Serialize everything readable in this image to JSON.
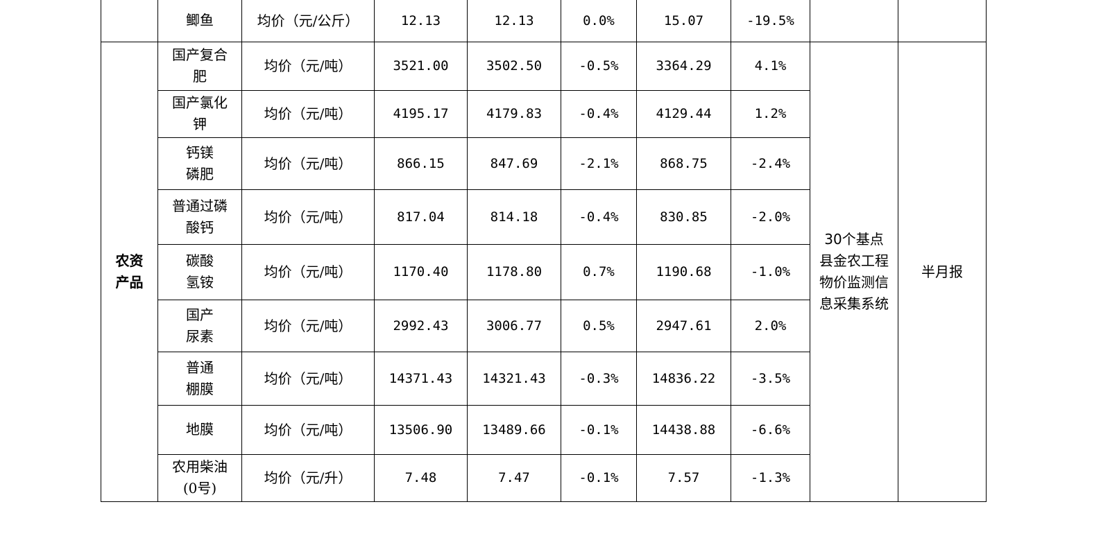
{
  "table": {
    "first_row": {
      "name": "鲫鱼",
      "unit": "均价（元/公斤）",
      "v1": "12.13",
      "v2": "12.13",
      "change1": "0.0%",
      "v3": "15.07",
      "change2": "-19.5%"
    },
    "category": "农资产品",
    "source": "30个基点县金农工程物价监测信息采集系统",
    "frequency": "半月报",
    "rows": [
      {
        "name": "国产复合肥",
        "unit": "均价（元/吨）",
        "v1": "3521.00",
        "v2": "3502.50",
        "change1": "-0.5%",
        "v3": "3364.29",
        "change2": "4.1%"
      },
      {
        "name": "国产氯化钾",
        "unit": "均价（元/吨）",
        "v1": "4195.17",
        "v2": "4179.83",
        "change1": "-0.4%",
        "v3": "4129.44",
        "change2": "1.2%"
      },
      {
        "name": "钙镁磷肥",
        "unit": "均价（元/吨）",
        "v1": "866.15",
        "v2": "847.69",
        "change1": "-2.1%",
        "v3": "868.75",
        "change2": "-2.4%"
      },
      {
        "name": "普通过磷酸钙",
        "unit": "均价（元/吨）",
        "v1": "817.04",
        "v2": "814.18",
        "change1": "-0.4%",
        "v3": "830.85",
        "change2": "-2.0%"
      },
      {
        "name": "碳酸氢铵",
        "unit": "均价（元/吨）",
        "v1": "1170.40",
        "v2": "1178.80",
        "change1": "0.7%",
        "v3": "1190.68",
        "change2": "-1.0%"
      },
      {
        "name": "国产尿素",
        "unit": "均价（元/吨）",
        "v1": "2992.43",
        "v2": "3006.77",
        "change1": "0.5%",
        "v3": "2947.61",
        "change2": "2.0%"
      },
      {
        "name": "普通棚膜",
        "unit": "均价（元/吨）",
        "v1": "14371.43",
        "v2": "14321.43",
        "change1": "-0.3%",
        "v3": "14836.22",
        "change2": "-3.5%"
      },
      {
        "name": "地膜",
        "unit": "均价（元/吨）",
        "v1": "13506.90",
        "v2": "13489.66",
        "change1": "-0.1%",
        "v3": "14438.88",
        "change2": "-6.6%"
      },
      {
        "name": "农用柴油(0号)",
        "unit": "均价（元/升）",
        "v1": "7.48",
        "v2": "7.47",
        "change1": "-0.1%",
        "v3": "7.57",
        "change2": "-1.3%"
      }
    ]
  }
}
